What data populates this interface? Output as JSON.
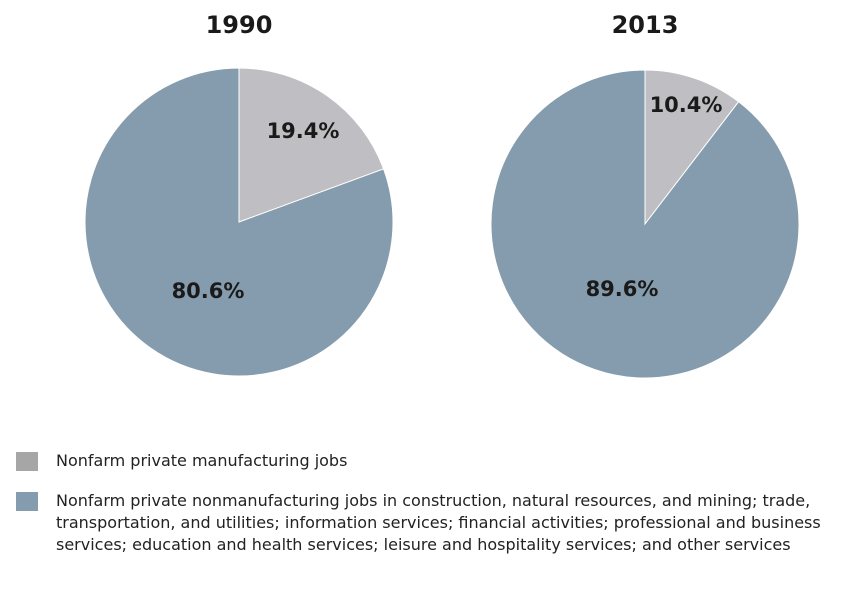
{
  "chart_data": [
    {
      "type": "pie",
      "title": "1990",
      "slices": [
        {
          "label": "Nonfarm private manufacturing jobs",
          "value": 19.4,
          "value_label": "19.4%",
          "color": "#bfbfc3"
        },
        {
          "label": "Nonfarm private nonmanufacturing jobs",
          "value": 80.6,
          "value_label": "80.6%",
          "color": "#849cad"
        }
      ]
    },
    {
      "type": "pie",
      "title": "2013",
      "slices": [
        {
          "label": "Nonfarm private manufacturing jobs",
          "value": 10.4,
          "value_label": "10.4%",
          "color": "#bfbfc3"
        },
        {
          "label": "Nonfarm private nonmanufacturing jobs",
          "value": 89.6,
          "value_label": "89.6%",
          "color": "#849cad"
        }
      ]
    }
  ],
  "legend": [
    {
      "text": "Nonfarm private manufacturing jobs",
      "color": "#a6a6a6"
    },
    {
      "text": "Nonfarm private nonmanufacturing jobs in construction, natural resources, and mining; trade, transportation, and utilities; information services; financial activities; professional and business services; education and health services; leisure and hospitality services; and other services",
      "color": "#849cad"
    }
  ]
}
